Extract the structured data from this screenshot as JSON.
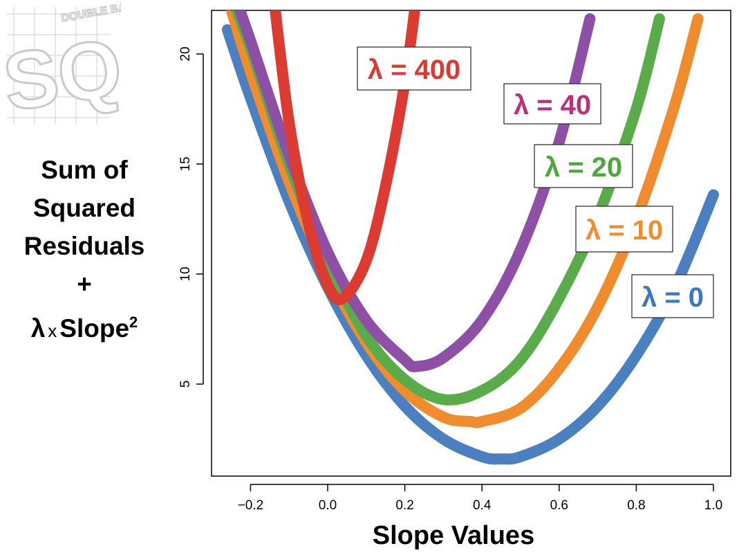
{
  "logo": {
    "big_text": "SQ!",
    "small_text": "DOUBLE BAM!!!"
  },
  "ylabel_lines": {
    "l1": "Sum of",
    "l2": "Squared",
    "l3": "Residuals",
    "l4": "+",
    "lambda": "λ",
    "times": "x",
    "slope": "Slope",
    "sup": "2"
  },
  "chart_data": {
    "type": "line",
    "xlabel": "Slope Values",
    "ylabel": "Sum of Squared Residuals + λ x Slope²",
    "xlim": [
      -0.3,
      1.05
    ],
    "ylim": [
      0.3,
      22
    ],
    "grid": false,
    "x_ticks": [
      -0.2,
      0.0,
      0.2,
      0.4,
      0.6,
      0.8,
      1.0
    ],
    "x_tick_labels": [
      "−0.2",
      "0.0",
      "0.2",
      "0.4",
      "0.6",
      "0.8",
      "1.0"
    ],
    "y_ticks": [
      5,
      10,
      15,
      20
    ],
    "y_tick_labels": [
      "5",
      "10",
      "15",
      "20"
    ],
    "series": [
      {
        "name": "λ = 0",
        "color": "#4a7fc0",
        "x": [
          -0.26,
          -0.2,
          -0.1,
          0.0,
          0.1,
          0.2,
          0.3,
          0.4,
          0.45,
          0.5,
          0.6,
          0.7,
          0.8,
          0.9,
          1.0
        ],
        "y": [
          21.1,
          18.0,
          13.3,
          9.4,
          6.3,
          4.0,
          2.5,
          1.7,
          1.6,
          1.7,
          2.5,
          4.0,
          6.3,
          9.4,
          13.6
        ]
      },
      {
        "name": "λ = 10",
        "color": "#f08c2e",
        "x": [
          -0.26,
          -0.2,
          -0.1,
          0.0,
          0.1,
          0.2,
          0.3,
          0.37,
          0.4,
          0.5,
          0.6,
          0.7,
          0.8,
          0.9,
          0.96
        ],
        "y": [
          22.6,
          19.2,
          14.2,
          10.1,
          6.9,
          4.7,
          3.5,
          3.3,
          3.3,
          3.9,
          5.7,
          8.5,
          12.5,
          17.7,
          21.6
        ]
      },
      {
        "name": "λ = 20",
        "color": "#5aab4a",
        "x": [
          -0.25,
          -0.2,
          -0.1,
          0.0,
          0.1,
          0.2,
          0.3,
          0.4,
          0.5,
          0.6,
          0.7,
          0.8,
          0.86
        ],
        "y": [
          22.6,
          20.3,
          15.0,
          10.6,
          7.2,
          5.2,
          4.3,
          4.7,
          6.1,
          8.9,
          12.6,
          17.5,
          21.6
        ]
      },
      {
        "name": "λ = 40",
        "color": "#8e4fa6",
        "x": [
          -0.24,
          -0.2,
          -0.1,
          0.0,
          0.1,
          0.2,
          0.23,
          0.3,
          0.4,
          0.5,
          0.6,
          0.68
        ],
        "y": [
          22.6,
          20.6,
          15.4,
          11.0,
          7.9,
          6.1,
          5.8,
          6.2,
          7.9,
          11.1,
          16.0,
          21.6
        ]
      },
      {
        "name": "λ = 400",
        "color": "#db3b30",
        "x": [
          -0.14,
          -0.1,
          -0.05,
          0.0,
          0.04,
          0.1,
          0.15,
          0.2,
          0.23
        ],
        "y": [
          22.6,
          16.9,
          12.3,
          9.5,
          8.9,
          10.6,
          14.0,
          18.7,
          22.6
        ]
      }
    ],
    "labels": [
      {
        "text": "λ = 400",
        "color": "#db3b30"
      },
      {
        "text": "λ = 40",
        "color": "#b8317a"
      },
      {
        "text": "λ = 20",
        "color": "#4aa83c"
      },
      {
        "text": "λ = 10",
        "color": "#f08c2e"
      },
      {
        "text": "λ = 0",
        "color": "#3d78bd"
      }
    ]
  }
}
